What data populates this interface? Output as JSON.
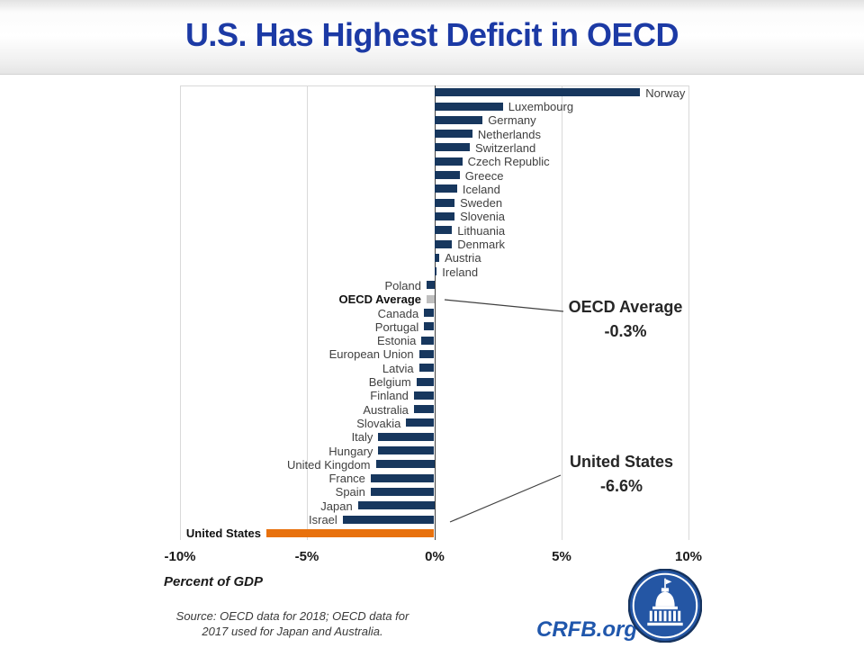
{
  "title": "U.S. Has Highest Deficit in OECD",
  "chart_data": {
    "type": "bar",
    "orientation": "horizontal",
    "title": "U.S. Has Highest Deficit in OECD",
    "xlabel": "Percent of GDP",
    "xlim": [
      -10,
      10
    ],
    "grid": "vertical",
    "x_ticks": [
      {
        "label": "-10%",
        "value": -10
      },
      {
        "label": "-5%",
        "value": -5
      },
      {
        "label": "0%",
        "value": 0
      },
      {
        "label": "5%",
        "value": 5
      },
      {
        "label": "10%",
        "value": 10
      }
    ],
    "categories": [
      "Norway",
      "Luxembourg",
      "Germany",
      "Netherlands",
      "Switzerland",
      "Czech Republic",
      "Greece",
      "Iceland",
      "Sweden",
      "Slovenia",
      "Lithuania",
      "Denmark",
      "Austria",
      "Ireland",
      "Poland",
      "OECD Average",
      "Canada",
      "Portugal",
      "Estonia",
      "European Union",
      "Latvia",
      "Belgium",
      "Finland",
      "Australia",
      "Slovakia",
      "Italy",
      "Hungary",
      "United Kingdom",
      "France",
      "Spain",
      "Japan",
      "Israel",
      "United States"
    ],
    "values": [
      8.1,
      2.7,
      1.9,
      1.5,
      1.4,
      1.1,
      1.0,
      0.9,
      0.8,
      0.8,
      0.7,
      0.7,
      0.2,
      0.1,
      -0.3,
      -0.3,
      -0.4,
      -0.4,
      -0.5,
      -0.6,
      -0.6,
      -0.7,
      -0.8,
      -0.8,
      -1.1,
      -2.2,
      -2.2,
      -2.3,
      -2.5,
      -2.5,
      -3.0,
      -3.6,
      -6.6
    ],
    "bar_color_default": "#17375E",
    "bar_color_overrides": {
      "OECD Average": "#BFBFBF",
      "United States": "#E8710D"
    },
    "bold_labels": [
      "OECD Average",
      "United States"
    ]
  },
  "annotations": {
    "oecd": {
      "label": "OECD Average",
      "value": "-0.3%"
    },
    "us": {
      "label": "United States",
      "value": "-6.6%"
    }
  },
  "axis_note": "Percent of GDP",
  "source": {
    "line1": "Source: OECD data for 2018; OECD data for",
    "line2": "2017 used for Japan and Australia."
  },
  "footer": {
    "brand": "CRFB.org"
  },
  "colors": {
    "title_blue": "#1C3AA5",
    "bar_navy": "#17375E",
    "bar_orange": "#E8710D",
    "bar_gray": "#BFBFBF",
    "brand_blue": "#2057AC",
    "logo_navy": "#16335E",
    "logo_blue": "#2456A4"
  }
}
